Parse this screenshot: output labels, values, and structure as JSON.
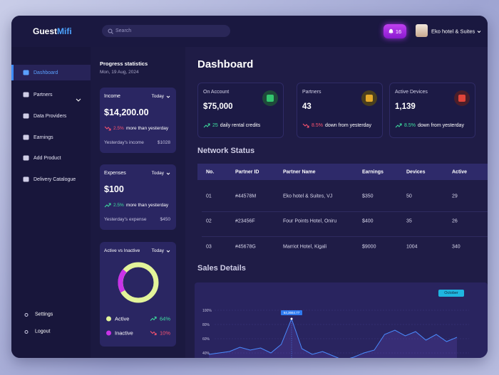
{
  "header": {
    "logo": {
      "first": "Guest",
      "second": "Mifi"
    },
    "search": "Search",
    "notifications": "16",
    "user": "Eko hotel & Suites"
  },
  "sidebar": {
    "nav": [
      "Dashboard",
      "Partners",
      "Data Providers",
      "Earnings",
      "Add Product",
      "Delivery Catalogue"
    ],
    "bottom": [
      "Settings",
      "Logout"
    ]
  },
  "progress": {
    "title": "Progress statistics",
    "date": "Mon, 19 Aug, 2024",
    "income": {
      "title": "Income",
      "filter": "Today",
      "amount": "$14,200.00",
      "change": "2.5%",
      "note": "more than yesterday",
      "footer_label": "Yesterday's income",
      "footer_value": "$1028"
    },
    "expenses": {
      "title": "Expenses",
      "filter": "Today",
      "amount": "$100",
      "change": "2.5%",
      "note": "more than yesterday",
      "footer_label": "Yesterday's expense",
      "footer_value": "$450"
    },
    "activity": {
      "title": "Active vs Inactive",
      "filter": "Today",
      "legend": [
        {
          "label": "Active",
          "value": "64%"
        },
        {
          "label": "Inactive",
          "value": "10%"
        }
      ]
    }
  },
  "main": {
    "title": "Dashboard",
    "stats": [
      {
        "label": "On Account",
        "value": "$75,000",
        "change": "25",
        "note": "daily rental credits"
      },
      {
        "label": "Partners",
        "value": "43",
        "change": "8.5%",
        "note": "down from yesterday"
      },
      {
        "label": "Active Devices",
        "value": "1,139",
        "change": "8.5%",
        "note": "down from yesterday"
      }
    ],
    "network": {
      "title": "Network Status",
      "columns": [
        "No.",
        "Partner ID",
        "Partner Name",
        "Earnings",
        "Devices",
        "Active"
      ],
      "rows": [
        [
          "01",
          "#44578M",
          "Eko hotel & Suites, VJ",
          "$350",
          "50",
          "29"
        ],
        [
          "02",
          "#23456F",
          "Four Points Hotel, Oniru",
          "$400",
          "35",
          "26"
        ],
        [
          "03",
          "#45678G",
          "Marriot Hotel, Kigali",
          "$9000",
          "1004",
          "340"
        ]
      ]
    },
    "sales": {
      "title": "Sales Details",
      "filter": "October",
      "tooltip": "64,3664.77",
      "yticks": [
        {
          "value": 100,
          "label": "100%"
        },
        {
          "value": 80,
          "label": "80%"
        },
        {
          "value": 60,
          "label": "60%"
        },
        {
          "value": 40,
          "label": "40%"
        }
      ],
      "values": [
        38,
        40,
        42,
        48,
        44,
        47,
        40,
        52,
        88,
        46,
        38,
        42,
        36,
        30,
        34,
        40,
        44,
        66,
        72,
        64,
        70,
        58,
        66,
        56,
        62
      ]
    }
  }
}
